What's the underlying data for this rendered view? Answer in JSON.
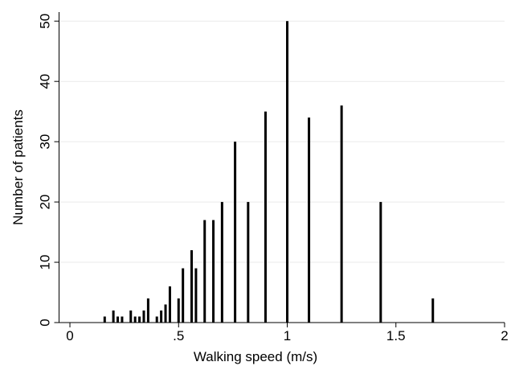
{
  "chart_data": {
    "type": "spike",
    "x_label": "Walking speed (m/s)",
    "y_label": "Number of patients",
    "x": [
      0.16,
      0.2,
      0.22,
      0.24,
      0.28,
      0.3,
      0.32,
      0.34,
      0.36,
      0.4,
      0.42,
      0.44,
      0.46,
      0.5,
      0.52,
      0.56,
      0.58,
      0.62,
      0.66,
      0.7,
      0.76,
      0.82,
      0.9,
      1.0,
      1.1,
      1.25,
      1.43,
      1.67
    ],
    "values": [
      1,
      2,
      1,
      1,
      2,
      1,
      1,
      2,
      4,
      1,
      2,
      3,
      6,
      4,
      9,
      12,
      9,
      17,
      17,
      20,
      30,
      20,
      35,
      50,
      34,
      36,
      20,
      4
    ],
    "color": "#000000",
    "xlim": [
      -0.05,
      2
    ],
    "xticks": [
      0,
      {
        "value": 0.5,
        "label": ".5"
      },
      1,
      1.5,
      2
    ],
    "ylim": [
      0,
      51.5
    ],
    "yticks": [
      0,
      10,
      20,
      30,
      40,
      50
    ],
    "grid": true
  }
}
